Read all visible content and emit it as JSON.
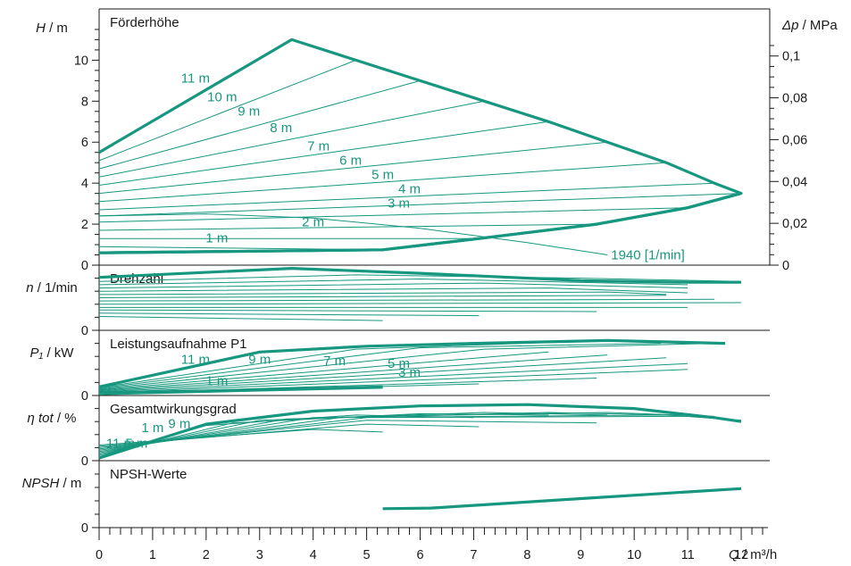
{
  "colors": {
    "curve": "#17977f",
    "axis": "#1a1a1a",
    "background": "#ffffff"
  },
  "chart_data": {
    "type": "line",
    "x": {
      "label_var": "Q",
      "label_unit": " / m³/h",
      "min": 0,
      "max": 12.5,
      "ticks": [
        0,
        1,
        2,
        3,
        4,
        5,
        6,
        7,
        8,
        9,
        10,
        11,
        12
      ]
    },
    "panels": [
      {
        "id": "head",
        "title": "Förderhöhe",
        "y_label_var": "H",
        "y_label_unit": " / m",
        "ylim": [
          0,
          12.5
        ],
        "yticks": [
          0,
          2,
          4,
          6,
          8,
          10
        ],
        "right_axis": {
          "label_var": "Δp",
          "label_unit": " / MPa",
          "scale": 0.0098,
          "ticks": [
            0,
            0.02,
            0.04,
            0.06,
            0.08,
            0.1
          ],
          "tick_labels": [
            "0",
            "0,02",
            "0,04",
            "0,06",
            "0,08",
            "0,1"
          ]
        },
        "envelope": [
          [
            0,
            5.5
          ],
          [
            3.6,
            11
          ],
          [
            4.8,
            10
          ],
          [
            6,
            9
          ],
          [
            7.2,
            8
          ],
          [
            8.4,
            7
          ],
          [
            9.5,
            6
          ],
          [
            10.6,
            5
          ],
          [
            11.5,
            4
          ],
          [
            12,
            3.5
          ],
          [
            11,
            2.8
          ],
          [
            9.3,
            2
          ],
          [
            7.1,
            1.3
          ],
          [
            5.3,
            0.75
          ],
          [
            0,
            0.6
          ]
        ],
        "min_curve": [
          [
            0,
            0.6
          ],
          [
            5.3,
            0.75
          ],
          [
            7.1,
            1.3
          ],
          [
            9.3,
            2
          ],
          [
            11,
            2.8
          ],
          [
            12,
            3.5
          ]
        ],
        "setpoint_lines": [
          [
            [
              0,
              5.1
            ],
            [
              4.8,
              10
            ]
          ],
          [
            [
              0,
              4.7
            ],
            [
              6,
              9
            ]
          ],
          [
            [
              0,
              4.3
            ],
            [
              7.2,
              8
            ]
          ],
          [
            [
              0,
              3.9
            ],
            [
              8.4,
              7
            ]
          ],
          [
            [
              0,
              3.5
            ],
            [
              9.5,
              6
            ]
          ],
          [
            [
              0,
              3.1
            ],
            [
              10.6,
              5
            ]
          ],
          [
            [
              0,
              2.7
            ],
            [
              11.5,
              4
            ]
          ],
          [
            [
              0,
              2.4
            ],
            [
              12,
              3.5
            ]
          ],
          [
            [
              0,
              2.1
            ],
            [
              11,
              2.8
            ]
          ],
          [
            [
              0,
              1.7
            ],
            [
              9.3,
              2
            ]
          ],
          [
            [
              0,
              1.3
            ],
            [
              7.1,
              1.3
            ]
          ],
          [
            [
              0,
              0.9
            ],
            [
              5.3,
              0.75
            ]
          ]
        ],
        "reference_curve": {
          "label": "1940 [1/min]",
          "points": [
            [
              0,
              2.4
            ],
            [
              2,
              2.5
            ],
            [
              4,
              2.3
            ],
            [
              6,
              1.8
            ],
            [
              8,
              1.1
            ],
            [
              9.5,
              0.5
            ]
          ]
        },
        "setpoint_labels": [
          {
            "text": "11 m",
            "x": 1.8,
            "y": 8.9
          },
          {
            "text": "10 m",
            "x": 2.3,
            "y": 8.0
          },
          {
            "text": "9 m",
            "x": 2.8,
            "y": 7.3
          },
          {
            "text": "8 m",
            "x": 3.4,
            "y": 6.5
          },
          {
            "text": "7 m",
            "x": 4.1,
            "y": 5.6
          },
          {
            "text": "6 m",
            "x": 4.7,
            "y": 4.9
          },
          {
            "text": "5 m",
            "x": 5.3,
            "y": 4.2
          },
          {
            "text": "4 m",
            "x": 5.8,
            "y": 3.5
          },
          {
            "text": "3 m",
            "x": 5.6,
            "y": 2.8
          },
          {
            "text": "2 m",
            "x": 4.0,
            "y": 1.9
          },
          {
            "text": "1 m",
            "x": 2.2,
            "y": 1.1
          }
        ]
      },
      {
        "id": "speed",
        "title": "Drehzahl",
        "y_label_var": "n",
        "y_label_unit": " / 1/min",
        "ylim": [
          0,
          4000
        ],
        "yticks": [
          0
        ],
        "envelope": [
          [
            0,
            3250
          ],
          [
            3.6,
            3800
          ],
          [
            6,
            3500
          ],
          [
            9,
            3050
          ],
          [
            11,
            2950
          ],
          [
            12,
            2950
          ]
        ],
        "lines": [
          [
            [
              0,
              3000
            ],
            [
              4.8,
              3400
            ],
            [
              9,
              3200
            ],
            [
              12,
              3000
            ]
          ],
          [
            [
              0,
              2800
            ],
            [
              6,
              3150
            ],
            [
              11,
              2800
            ]
          ],
          [
            [
              0,
              2600
            ],
            [
              7.2,
              2900
            ],
            [
              11,
              2600
            ]
          ],
          [
            [
              0,
              2400
            ],
            [
              8.4,
              2600
            ],
            [
              11,
              2300
            ]
          ],
          [
            [
              0,
              2200
            ],
            [
              9.5,
              2350
            ],
            [
              10.6,
              2200
            ]
          ],
          [
            [
              0,
              2000
            ],
            [
              10.6,
              2150
            ]
          ],
          [
            [
              0,
              1800
            ],
            [
              11.5,
              1900
            ]
          ],
          [
            [
              0,
              1600
            ],
            [
              12,
              1700
            ]
          ],
          [
            [
              0,
              1400
            ],
            [
              11,
              1400
            ]
          ],
          [
            [
              0,
              1250
            ],
            [
              9.3,
              1150
            ]
          ],
          [
            [
              0,
              1050
            ],
            [
              7.1,
              900
            ]
          ],
          [
            [
              0,
              850
            ],
            [
              5.3,
              600
            ]
          ]
        ]
      },
      {
        "id": "power",
        "title": "Leistungsaufnahme P1",
        "y_label_var": "P₁",
        "y_label_unit": " / kW",
        "ylim": [
          0,
          0.45
        ],
        "yticks": [
          0
        ],
        "envelope": [
          [
            0,
            0.06
          ],
          [
            3,
            0.3
          ],
          [
            5,
            0.34
          ],
          [
            7,
            0.36
          ],
          [
            9.5,
            0.38
          ],
          [
            11.7,
            0.36
          ]
        ],
        "lines": [
          [
            [
              0,
              0.055
            ],
            [
              4.8,
              0.32
            ],
            [
              9.5,
              0.38
            ]
          ],
          [
            [
              0,
              0.05
            ],
            [
              6,
              0.33
            ],
            [
              10.5,
              0.36
            ]
          ],
          [
            [
              0,
              0.045
            ],
            [
              7.2,
              0.32
            ],
            [
              11.5,
              0.36
            ]
          ],
          [
            [
              0,
              0.04
            ],
            [
              8.4,
              0.3
            ]
          ],
          [
            [
              0,
              0.035
            ],
            [
              9.5,
              0.28
            ]
          ],
          [
            [
              0,
              0.03
            ],
            [
              10.6,
              0.26
            ]
          ],
          [
            [
              0,
              0.025
            ],
            [
              11,
              0.22
            ]
          ],
          [
            [
              0,
              0.02
            ],
            [
              11,
              0.18
            ]
          ],
          [
            [
              0,
              0.015
            ],
            [
              9.3,
              0.12
            ]
          ],
          [
            [
              0,
              0.01
            ],
            [
              7.1,
              0.08
            ]
          ],
          [
            [
              0,
              0.005
            ],
            [
              5.3,
              0.05
            ]
          ]
        ],
        "min_curve": [
          [
            0,
            0.02
          ],
          [
            2,
            0.03
          ],
          [
            5.3,
            0.06
          ]
        ],
        "labels": [
          {
            "text": "11 m",
            "x": 1.8,
            "y": 0.22
          },
          {
            "text": "9 m",
            "x": 3.0,
            "y": 0.22
          },
          {
            "text": "7 m",
            "x": 4.4,
            "y": 0.21
          },
          {
            "text": "5 m",
            "x": 5.6,
            "y": 0.19
          },
          {
            "text": "3 m",
            "x": 5.8,
            "y": 0.13
          },
          {
            "text": "1 m",
            "x": 2.2,
            "y": 0.07
          }
        ]
      },
      {
        "id": "efficiency",
        "title": "Gesamtwirkungsgrad",
        "y_label_var": "η tot",
        "y_label_unit": " / %",
        "ylim": [
          0,
          50
        ],
        "yticks": [
          0
        ],
        "envelope": [
          [
            0,
            2
          ],
          [
            2,
            28
          ],
          [
            4,
            38
          ],
          [
            6,
            42
          ],
          [
            8,
            43
          ],
          [
            10,
            40
          ],
          [
            11.5,
            33
          ],
          [
            12,
            30
          ]
        ],
        "lines": [
          [
            [
              0,
              3
            ],
            [
              2,
              27
            ],
            [
              4.8,
              35
            ],
            [
              7,
              33
            ]
          ],
          [
            [
              0,
              4
            ],
            [
              2.5,
              29
            ],
            [
              6,
              36
            ],
            [
              8.4,
              35
            ]
          ],
          [
            [
              0,
              5
            ],
            [
              3,
              31
            ],
            [
              7.2,
              37
            ],
            [
              9.5,
              35
            ]
          ],
          [
            [
              0,
              6
            ],
            [
              3.5,
              32
            ],
            [
              8.4,
              37
            ],
            [
              10.6,
              35
            ]
          ],
          [
            [
              0,
              7
            ],
            [
              4,
              33
            ],
            [
              9.5,
              37
            ],
            [
              11.5,
              34
            ]
          ],
          [
            [
              0,
              8
            ],
            [
              4.5,
              33
            ],
            [
              10.6,
              35
            ],
            [
              12,
              31
            ]
          ],
          [
            [
              0,
              9
            ],
            [
              5,
              33
            ],
            [
              11,
              34
            ]
          ],
          [
            [
              0,
              10
            ],
            [
              5,
              31
            ],
            [
              9.3,
              29
            ]
          ],
          [
            [
              0,
              11
            ],
            [
              5,
              28
            ],
            [
              7.1,
              26
            ]
          ],
          [
            [
              0,
              12
            ],
            [
              4,
              24
            ],
            [
              5.3,
              22
            ]
          ]
        ],
        "labels": [
          {
            "text": "1 m",
            "x": 1.0,
            "y": 22
          },
          {
            "text": "9 m",
            "x": 1.5,
            "y": 25
          },
          {
            "text": "11 m",
            "x": 0.4,
            "y": 10
          },
          {
            "text": "5 m",
            "x": 0.7,
            "y": 10
          }
        ]
      },
      {
        "id": "npsh",
        "title": "NPSH-Werte",
        "y_label_var": "NPSH",
        "y_label_unit": " / m",
        "ylim": [
          0,
          6
        ],
        "yticks": [
          0
        ],
        "envelope": [
          [
            5.3,
            1.7
          ],
          [
            6.2,
            1.75
          ],
          [
            7.2,
            2.05
          ],
          [
            9,
            2.6
          ],
          [
            11,
            3.2
          ],
          [
            12,
            3.5
          ]
        ]
      }
    ]
  }
}
